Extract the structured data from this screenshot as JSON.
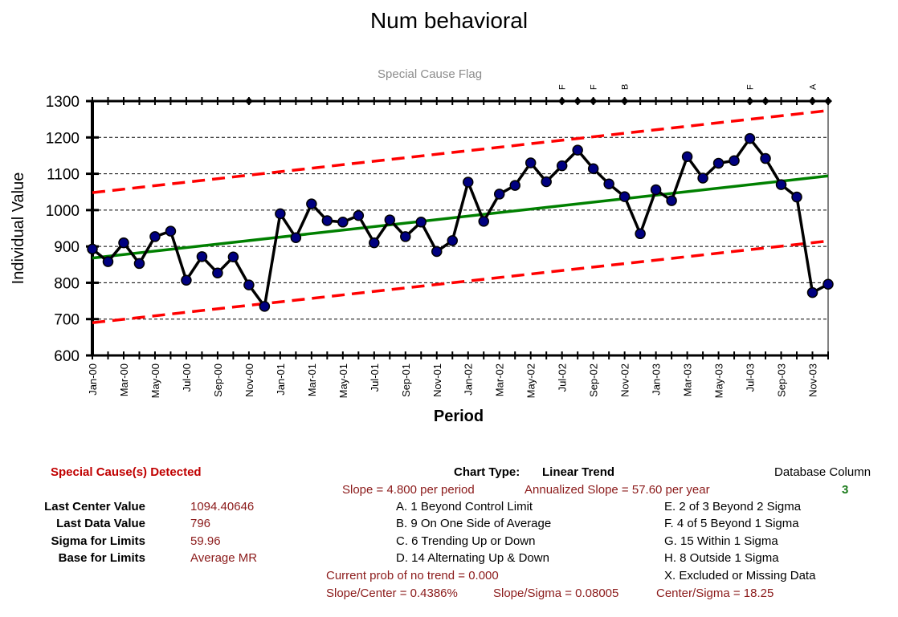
{
  "title": "Num behavioral",
  "special_cause_caption": "Special Cause Flag",
  "chart_data": {
    "type": "line",
    "title": "Num behavioral",
    "xlabel": "Period",
    "ylabel": "Individual Value",
    "ylim": [
      600,
      1300
    ],
    "yticks": [
      600,
      700,
      800,
      900,
      1000,
      1100,
      1200,
      1300
    ],
    "grid": true,
    "x": [
      "Jan-00",
      "Feb-00",
      "Mar-00",
      "Apr-00",
      "May-00",
      "Jun-00",
      "Jul-00",
      "Aug-00",
      "Sep-00",
      "Oct-00",
      "Nov-00",
      "Dec-00",
      "Jan-01",
      "Feb-01",
      "Mar-01",
      "Apr-01",
      "May-01",
      "Jun-01",
      "Jul-01",
      "Aug-01",
      "Sep-01",
      "Oct-01",
      "Nov-01",
      "Dec-01",
      "Jan-02",
      "Feb-02",
      "Mar-02",
      "Apr-02",
      "May-02",
      "Jun-02",
      "Jul-02",
      "Aug-02",
      "Sep-02",
      "Oct-02",
      "Nov-02",
      "Dec-02",
      "Jan-03",
      "Feb-03",
      "Mar-03",
      "Apr-03",
      "May-03",
      "Jun-03",
      "Jul-03",
      "Aug-03",
      "Sep-03",
      "Oct-03",
      "Nov-03",
      "Dec-03"
    ],
    "xtick_labels": [
      "Jan-00",
      "Mar-00",
      "May-00",
      "Jul-00",
      "Sep-00",
      "Nov-00",
      "Jan-01",
      "Mar-01",
      "May-01",
      "Jul-01",
      "Sep-01",
      "Nov-01",
      "Jan-02",
      "Mar-02",
      "May-02",
      "Jul-02",
      "Sep-02",
      "Nov-02",
      "Jan-03",
      "Mar-03",
      "May-03",
      "Jul-03",
      "Sep-03",
      "Nov-03"
    ],
    "series": [
      {
        "values": [
          893,
          858,
          910,
          853,
          927,
          942,
          807,
          872,
          827,
          871,
          794,
          735,
          990,
          924,
          1017,
          971,
          967,
          985,
          910,
          973,
          927,
          967,
          886,
          916,
          1077,
          969,
          1044,
          1068,
          1130,
          1078,
          1122,
          1165,
          1114,
          1072,
          1037,
          935,
          1056,
          1026,
          1147,
          1088,
          1129,
          1136,
          1197,
          1142,
          1070,
          1036,
          773,
          796
        ]
      },
      {
        "values_start": 868,
        "values_end": 1094
      },
      {
        "values_start": 690,
        "values_end": 915
      },
      {
        "values_start": 1048,
        "values_end": 1274
      }
    ],
    "flags": [
      {
        "period": "Jul-02",
        "label": "F"
      },
      {
        "period": "Sep-02",
        "label": "F"
      },
      {
        "period": "Nov-02",
        "label": "B"
      },
      {
        "period": "Jul-03",
        "label": "F"
      },
      {
        "period": "Nov-03",
        "label": "A"
      }
    ],
    "flag_markers": [
      "Nov-00",
      "Jul-02",
      "Aug-02",
      "Sep-02",
      "Nov-02",
      "Jul-03",
      "Aug-03",
      "Nov-03",
      "Dec-03"
    ],
    "colors": {
      "data": "#000000",
      "marker": "#000080",
      "center": "#008000",
      "limits": "#ff0000",
      "grid": "#000000"
    }
  },
  "summary": {
    "special_cause_label": "Special Cause(s) Detected",
    "chart_type_label": "Chart Type:",
    "chart_type_value": "Linear Trend",
    "database_column_label": "Database Column",
    "database_column_value": "3",
    "slope_text": "Slope = 4.800 per period",
    "annualized_text": "Annualized Slope = 57.60 per year",
    "stats": [
      {
        "label": "Last Center Value",
        "value": "1094.40646"
      },
      {
        "label": "Last Data Value",
        "value": "796"
      },
      {
        "label": "Sigma for Limits",
        "value": "59.96"
      },
      {
        "label": "Base for Limits",
        "value": "Average MR"
      }
    ],
    "rules_left": [
      "A.  1 Beyond Control Limit",
      "B.  9 On One Side of Average",
      "C.  6 Trending Up or Down",
      "D.  14 Alternating  Up & Down"
    ],
    "rules_right": [
      "E.  2 of 3 Beyond 2 Sigma",
      "F.  4 of 5 Beyond 1 Sigma",
      "G.  15 Within 1 Sigma",
      "H.  8 Outside 1 Sigma",
      "X.  Excluded or Missing Data"
    ],
    "prob_text": "Current prob of no trend = 0.000",
    "slope_center": "Slope/Center = 0.4386%",
    "slope_sigma": "Slope/Sigma = 0.08005",
    "center_sigma": "Center/Sigma = 18.25"
  }
}
